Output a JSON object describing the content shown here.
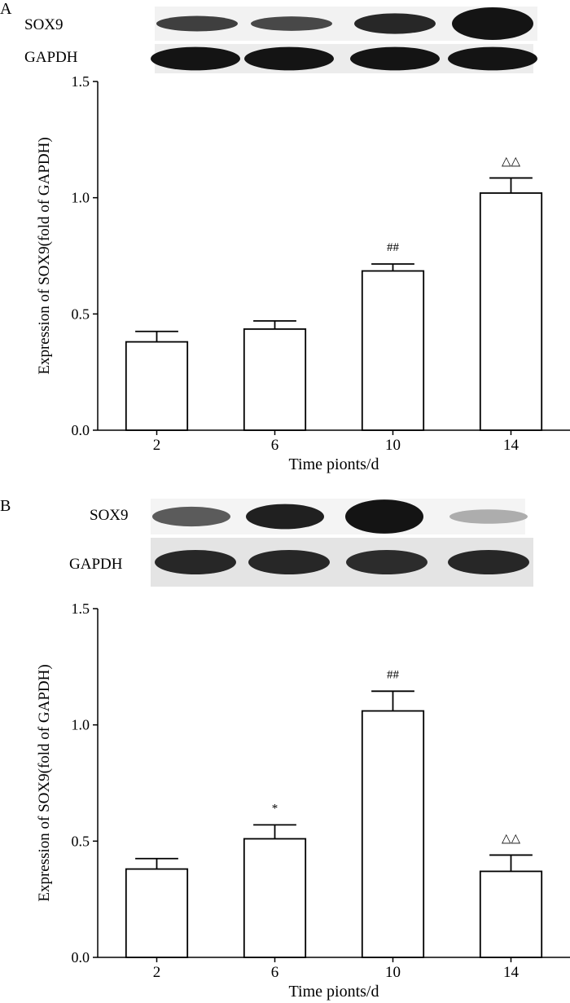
{
  "panels": [
    {
      "letter": "A",
      "blot": {
        "rows": [
          {
            "label": "SOX9",
            "intensities": [
              0.82,
              0.78,
              0.92,
              1.0
            ],
            "thickness": [
              0.45,
              0.42,
              0.6,
              0.95
            ]
          },
          {
            "label": "GAPDH",
            "intensities": [
              1.0,
              1.0,
              1.0,
              1.0
            ],
            "thickness": [
              0.8,
              0.8,
              0.8,
              0.8
            ]
          }
        ]
      },
      "chart_data": {
        "type": "bar",
        "categories": [
          "2",
          "6",
          "10",
          "14"
        ],
        "values": [
          0.38,
          0.435,
          0.685,
          1.02
        ],
        "errors": [
          0.045,
          0.035,
          0.03,
          0.065
        ],
        "annotations": [
          "",
          "",
          "##",
          "△△"
        ],
        "xlabel": "Time pionts/d",
        "ylabel": "Expression of SOX9(fold of GAPDH)",
        "ylim": [
          0,
          1.5
        ],
        "yticks": [
          "0.0",
          "0.5",
          "1.0",
          "1.5"
        ]
      }
    },
    {
      "letter": "B",
      "blot": {
        "rows": [
          {
            "label": "SOX9",
            "intensities": [
              0.7,
              0.95,
              1.0,
              0.35
            ],
            "thickness": [
              0.55,
              0.7,
              0.95,
              0.4
            ]
          },
          {
            "label": "GAPDH",
            "intensities": [
              0.92,
              0.92,
              0.9,
              0.92
            ],
            "thickness": [
              0.5,
              0.5,
              0.5,
              0.5
            ]
          }
        ]
      },
      "chart_data": {
        "type": "bar",
        "categories": [
          "2",
          "6",
          "10",
          "14"
        ],
        "values": [
          0.38,
          0.51,
          1.06,
          0.37
        ],
        "errors": [
          0.045,
          0.06,
          0.085,
          0.07
        ],
        "annotations": [
          "",
          "*",
          "##",
          "△△"
        ],
        "xlabel": "Time pionts/d",
        "ylabel": "Expression of SOX9(fold of GAPDH)",
        "ylim": [
          0,
          1.5
        ],
        "yticks": [
          "0.0",
          "0.5",
          "1.0",
          "1.5"
        ]
      }
    }
  ]
}
